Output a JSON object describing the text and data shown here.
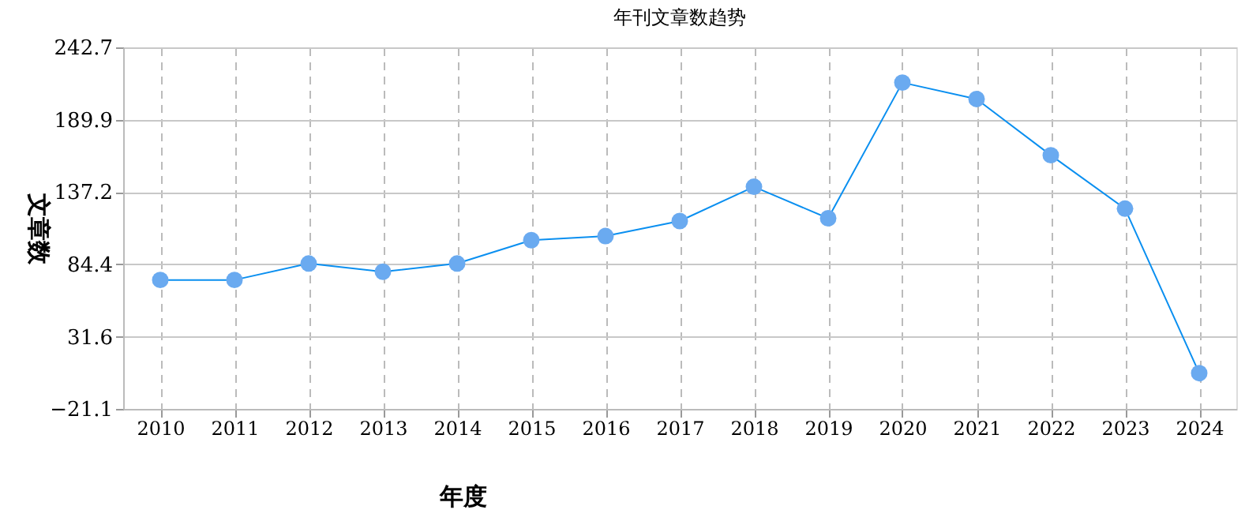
{
  "chart_data": {
    "type": "line",
    "title": "年刊文章数趋势",
    "xlabel": "年度",
    "ylabel": "文章数",
    "categories": [
      "2010",
      "2011",
      "2012",
      "2013",
      "2014",
      "2015",
      "2016",
      "2017",
      "2018",
      "2019",
      "2020",
      "2021",
      "2022",
      "2023",
      "2024"
    ],
    "series": [
      {
        "color": "#0a8ff0",
        "values": [
          73,
          73,
          85,
          79,
          85,
          102,
          105,
          116,
          141,
          118,
          217,
          205,
          164,
          125,
          5
        ]
      }
    ],
    "ylim": [
      -21.1,
      242.7
    ],
    "yticks": [
      -21.1,
      31.6,
      84.4,
      137.2,
      189.9,
      242.7
    ],
    "grid": true,
    "marker": "circle",
    "line_style": "solid"
  }
}
